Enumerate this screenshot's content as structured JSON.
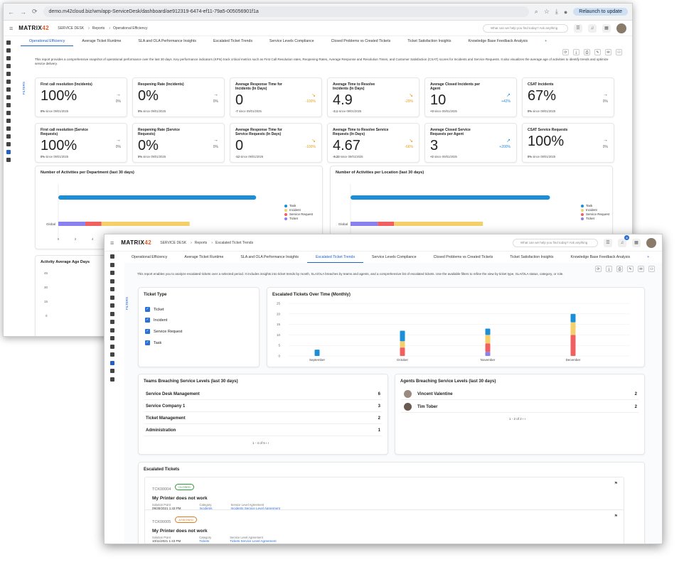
{
  "back": {
    "url": "demo.m42cloud.biz/wm/app-ServiceDesk/dashboard/ae912319-6474-ef11-79a5-005056901f1a",
    "relaunch": "Relaunch to update",
    "logo_main": "MATRIX",
    "logo_num": "42",
    "crumbs": [
      "SERVICE DESK",
      "Reports",
      "Operational Efficiency"
    ],
    "ask": "What can we help you find today? Ask anything",
    "tabs": [
      "Operational Efficiency",
      "Average Ticket Runtime",
      "SLA and OLA Performance Insights",
      "Escalated Ticket Trends",
      "Service Levels Compliance",
      "Closed Problems vs Created Tickets",
      "Ticket Satisfaction Insights",
      "Knowledge Base Feedback Analysis",
      "+"
    ],
    "description": "This report provides a comprehensive snapshot of operational performance over the last 30 days. Key performance indicators (KPIs) track critical metrics such as First Call Resolution rates, Reopening Rates, Average Response and Resolution Times, and Customer Satisfaction (CSAT) scores for Incidents and Service Requests. It also visualizes the average age of activities to identify trends and optimize service delivery.",
    "filters": "FILTERS",
    "since": "since",
    "kpis": [
      {
        "title": "First call resolution (Incidents)",
        "value": "100%",
        "base": "0%",
        "date": "09/01/2025",
        "arrow": "→",
        "change": "0%",
        "trend": ""
      },
      {
        "title": "Reopening Rate (Incidents)",
        "value": "0%",
        "base": "0%",
        "date": "09/01/2025",
        "arrow": "→",
        "change": "0%",
        "trend": ""
      },
      {
        "title": "Average Response Time for Incidents (In Days)",
        "value": "0",
        "base": "-7",
        "date": "09/01/2025",
        "arrow": "↘",
        "change": "-100%",
        "trend": "down"
      },
      {
        "title": "Average Time to Resolve Incidents (In Days)",
        "value": "4.9",
        "base": "-2.1",
        "date": "09/01/2025",
        "arrow": "↘",
        "change": "-29%",
        "trend": "down"
      },
      {
        "title": "Average Closed Incidents per Agent",
        "value": "10",
        "base": "+3",
        "date": "09/01/2025",
        "arrow": "↗",
        "change": "+42%",
        "trend": "up"
      },
      {
        "title": "CSAT Incidents",
        "value": "67%",
        "base": "0%",
        "date": "09/01/2025",
        "arrow": "→",
        "change": "0%",
        "trend": ""
      },
      {
        "title": "First call resolution (Service Requests)",
        "value": "100%",
        "base": "0%",
        "date": "09/01/2025",
        "arrow": "→",
        "change": "0%",
        "trend": ""
      },
      {
        "title": "Reopening Rate (Service Requests)",
        "value": "0%",
        "base": "0%",
        "date": "09/01/2025",
        "arrow": "→",
        "change": "0%",
        "trend": ""
      },
      {
        "title": "Average Response Time for Service Requests (In Days)",
        "value": "0",
        "base": "-12",
        "date": "09/01/2025",
        "arrow": "↘",
        "change": "-100%",
        "trend": "down"
      },
      {
        "title": "Average Time to Resolve Service Requests (In Days)",
        "value": "4.67",
        "base": "-9.33",
        "date": "09/01/2025",
        "arrow": "↘",
        "change": "-66%",
        "trend": "down"
      },
      {
        "title": "Average Closed Service Requests per Agent",
        "value": "3",
        "base": "+2",
        "date": "09/01/2025",
        "arrow": "↗",
        "change": "+200%",
        "trend": "up"
      },
      {
        "title": "CSAT Service Requests",
        "value": "100%",
        "base": "0%",
        "date": "09/01/2025",
        "arrow": "→",
        "change": "0%",
        "trend": ""
      }
    ],
    "dept_title": "Number of Activities per Department (last 30 days)",
    "loc_title": "Number of Activities per Location (last 30 days)",
    "global_label": "Global",
    "x_ticks": [
      "0",
      "2",
      "4"
    ],
    "age_title": "Activity Average Age Days",
    "age_ticks": [
      "45",
      "30",
      "15",
      "0"
    ]
  },
  "legend": [
    {
      "label": "Task",
      "color": "#1a8fd8"
    },
    {
      "label": "Incident",
      "color": "#f5d06a"
    },
    {
      "label": "Service Request",
      "color": "#f06060"
    },
    {
      "label": "Ticket",
      "color": "#8a80f0"
    }
  ],
  "front": {
    "logo_main": "MATRIX",
    "logo_num": "42",
    "crumbs": [
      "SERVICE DESK",
      "Reports",
      "Escalated Ticket Trends"
    ],
    "ask": "What can we help you find today? Ask anything",
    "notif_count": "4",
    "tabs": [
      "Operational Efficiency",
      "Average Ticket Runtime",
      "SLA and OLA Performance Insights",
      "Escalated Ticket Trends",
      "Service Levels Compliance",
      "Closed Problems vs Created Tickets",
      "Ticket Satisfaction Insights",
      "Knowledge Base Feedback Analysis",
      "+"
    ],
    "description": "This report enables you to analyze escalated tickets over a selected period. It includes insights into ticket trends by month, SLA/OLA breaches by teams and agents, and a comprehensive list of escalated tickets. Use the available filters to refine the view by ticket type, SLA/OLA status, category, or role.",
    "filters": "FILTERS",
    "ticket_type_title": "Ticket Type",
    "ticket_types": [
      "Ticket",
      "Incident",
      "Service Request",
      "Task"
    ],
    "teams_title": "Teams Breaching Service Levels (last 30 days)",
    "teams": [
      {
        "name": "Service Desk Management",
        "count": "6"
      },
      {
        "name": "Service Company 1",
        "count": "3"
      },
      {
        "name": "Ticket Management",
        "count": "2"
      },
      {
        "name": "Administration",
        "count": "1"
      }
    ],
    "teams_pager": "1 - 4 of 5",
    "agents_title": "Agents Breaching Service Levels (last 30 days)",
    "agents": [
      {
        "name": "Vincent Valentine",
        "count": "2"
      },
      {
        "name": "Tim Tober",
        "count": "2"
      }
    ],
    "agents_pager": "1 - 2 of 2",
    "escalated_title": "Escalated Tickets",
    "tickets": [
      {
        "id": "TCK00004",
        "status": "CLOSED",
        "name": "My Printer does not work",
        "sp_label": "Solution Point",
        "sp": "09/30/2021 1:43 PM",
        "cat_label": "Category",
        "cat": "Incidents",
        "sla_label": "Service Level Agreement",
        "sla": "Incidents Service Level Agreement"
      },
      {
        "id": "TCK00005",
        "status": "ASSIGNED",
        "name": "My Printer does not work",
        "sp_label": "Solution Point",
        "sp": "10/11/2021 1:43 PM",
        "cat_label": "Category",
        "cat": "Tickets",
        "sla_label": "Service Level Agreement",
        "sla": "Tickets Service Level Agreement"
      }
    ]
  },
  "chart_data": [
    {
      "type": "bar",
      "title": "Escalated Tickets Over Time (Monthly)",
      "categories": [
        "September",
        "October",
        "November",
        "December"
      ],
      "yticks": [
        0,
        5,
        10,
        15,
        20,
        25
      ],
      "ylim": [
        0,
        25
      ],
      "stacked": true,
      "series": [
        {
          "name": "Ticket",
          "color": "#8a80f0",
          "values": [
            0,
            0,
            2,
            0
          ]
        },
        {
          "name": "Service Request",
          "color": "#f06060",
          "values": [
            0,
            4,
            4,
            10
          ]
        },
        {
          "name": "Incident",
          "color": "#f5d06a",
          "values": [
            0,
            3,
            4,
            6
          ]
        },
        {
          "name": "Task",
          "color": "#1a8fd8",
          "values": [
            3,
            5,
            3,
            4
          ]
        }
      ]
    },
    {
      "type": "bar",
      "title": "Number of Activities per Department (last 30 days)",
      "orientation": "horizontal",
      "categories": [
        "Global"
      ],
      "series": [
        {
          "name": "Task",
          "color": "#1a8fd8",
          "values": [
            11
          ]
        },
        {
          "name": "Ticket",
          "color": "#8a80f0",
          "values": [
            1.5
          ]
        },
        {
          "name": "Service Request",
          "color": "#f06060",
          "values": [
            0.9
          ]
        },
        {
          "name": "Incident",
          "color": "#f5d06a",
          "values": [
            4.9
          ]
        }
      ]
    }
  ]
}
